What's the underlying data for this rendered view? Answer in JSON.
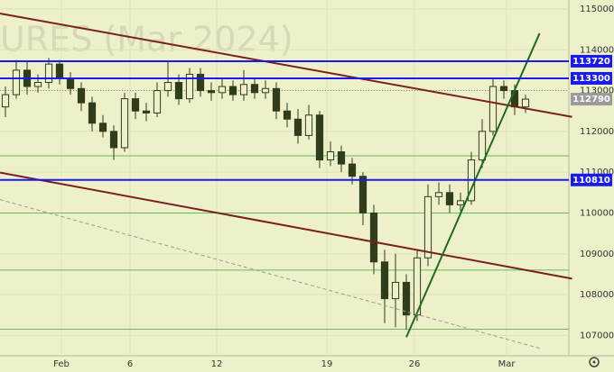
{
  "chart_data": {
    "type": "candlestick",
    "watermark": "URES (Mar 2024)",
    "open": [
      112600,
      112900,
      113500,
      113100,
      113200,
      113650,
      113300,
      113050,
      112700,
      112200,
      112000,
      111600,
      112800,
      112500,
      112450,
      113000,
      113200,
      112800,
      113400,
      113000,
      112950,
      113100,
      112900,
      113150,
      112950,
      113050,
      112500,
      112300,
      111900,
      112400,
      111300,
      111500,
      111200,
      110900,
      110000,
      108800,
      107900,
      108300,
      107500,
      108900,
      110400,
      110500,
      110200,
      110300,
      111300,
      112000,
      113100,
      113000,
      112600
    ],
    "high": [
      113100,
      113750,
      113700,
      113400,
      113800,
      113750,
      113450,
      113200,
      112850,
      112400,
      112150,
      112950,
      112950,
      112700,
      113200,
      113700,
      113400,
      113550,
      113550,
      113200,
      113300,
      113250,
      113500,
      113300,
      113250,
      113200,
      112700,
      112550,
      112650,
      112500,
      111750,
      111650,
      111350,
      111000,
      110200,
      109100,
      109000,
      108500,
      109100,
      110700,
      110750,
      110700,
      110500,
      111500,
      112300,
      113300,
      113250,
      113150,
      112900
    ],
    "low": [
      112350,
      112800,
      112900,
      112950,
      113050,
      113150,
      112900,
      112500,
      112000,
      111850,
      111300,
      111500,
      112300,
      112250,
      112350,
      112850,
      112650,
      112700,
      112850,
      112750,
      112800,
      112750,
      112750,
      112800,
      112800,
      112300,
      112100,
      111700,
      111800,
      111100,
      111150,
      111000,
      110700,
      109700,
      108500,
      107300,
      107200,
      107150,
      107350,
      108700,
      110200,
      110000,
      110050,
      110200,
      111100,
      111900,
      112800,
      112400,
      112450
    ],
    "close": [
      112900,
      113500,
      113100,
      113200,
      113650,
      113300,
      113050,
      112700,
      112200,
      112000,
      111600,
      112800,
      112500,
      112450,
      113000,
      113200,
      112800,
      113400,
      113000,
      112950,
      113100,
      112900,
      113150,
      112950,
      113050,
      112500,
      112300,
      111900,
      112400,
      111300,
      111500,
      111200,
      110900,
      110000,
      108800,
      107900,
      108300,
      107500,
      108900,
      110400,
      110500,
      110200,
      110300,
      111300,
      112000,
      113100,
      113000,
      112600,
      112790
    ],
    "candle_color": "#2f3d1c",
    "xlim": [
      -0.5,
      52
    ],
    "xticks": [
      {
        "value": 5.17,
        "label": "Feb"
      },
      {
        "value": 11.5,
        "label": "6"
      },
      {
        "value": 19.5,
        "label": "12"
      },
      {
        "value": 29.67,
        "label": "19"
      },
      {
        "value": 37.75,
        "label": "26"
      },
      {
        "value": 46.25,
        "label": "Mar"
      }
    ],
    "ylim": [
      106500,
      115220
    ],
    "yticks": [
      107000,
      108000,
      109000,
      110000,
      111000,
      112000,
      113000,
      114000,
      115000
    ],
    "grid": true,
    "levels": [
      {
        "value": 113720,
        "color": "#1a1aee"
      },
      {
        "value": 113300,
        "color": "#1a1aee"
      },
      {
        "value": 110810,
        "color": "#1a1aee"
      }
    ],
    "last_price": {
      "value": 112790,
      "color": "#9a9a9a"
    },
    "guide_lines": {
      "values": [
        111400,
        110000,
        108600,
        107150
      ],
      "color": "#5fbf5f"
    },
    "dotted_line": {
      "value": 113000,
      "color": "#8a8a8a"
    },
    "trendlines": [
      {
        "color": "#7a1f1f",
        "x": [
          -0.5,
          52.3
        ],
        "y": [
          114890,
          112356
        ]
      },
      {
        "color": "#7a1f1f",
        "x": [
          -0.5,
          52.3
        ],
        "y": [
          110990,
          108390
        ]
      },
      {
        "color": "#1f6b1f",
        "x": [
          37,
          49.3
        ],
        "y": [
          106955,
          114405
        ]
      },
      {
        "color": "#999999",
        "x": [
          -0.5,
          49.5
        ],
        "y": [
          110328,
          106670
        ],
        "dashed": true
      }
    ]
  }
}
